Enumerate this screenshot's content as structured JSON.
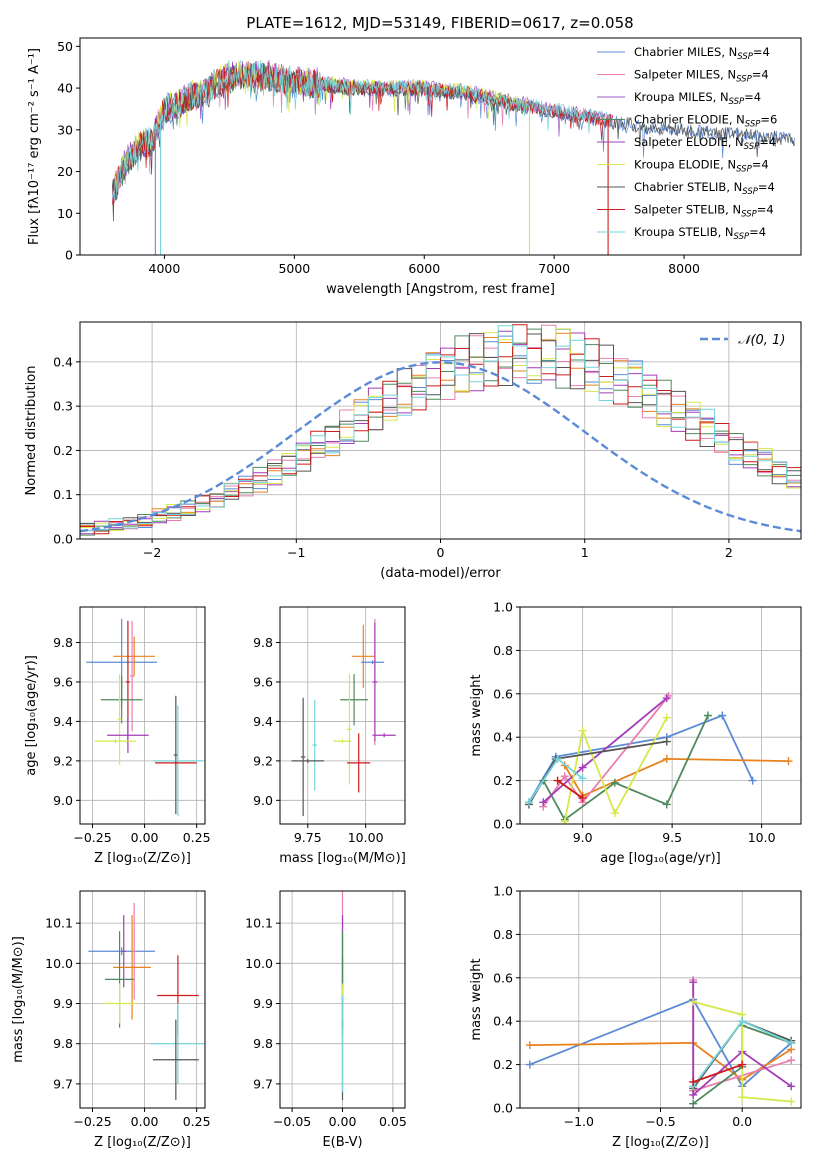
{
  "title": "PLATE=1612, MJD=53149, FIBERID=0617, z=0.058",
  "colors": {
    "chabrier_miles": "#5b8bd6",
    "salpeter_miles": "#e87fb0",
    "kroupa_miles": "#a05ac8",
    "chabrier_elodie": "#4f8a5e",
    "salpeter_elodie": "#a33cb8",
    "kroupa_elodie": "#d6e84e",
    "chabrier_stelib": "#555555",
    "salpeter_stelib": "#cc1c1c",
    "kroupa_stelib": "#74d4d8",
    "orange": "#e8821e",
    "gauss": "#5b8bd6",
    "grid": "#b0b0b0"
  },
  "chart_data": [
    {
      "id": "spectrum",
      "type": "line",
      "title": "PLATE=1612, MJD=53149, FIBERID=0617, z=0.058",
      "xlabel": "wavelength [Angstrom, rest frame]",
      "ylabel": "Flux [fλ10⁻¹⁷ erg cm⁻² s⁻¹ A⁻¹]",
      "xlim": [
        3350,
        8900
      ],
      "ylim": [
        0,
        52
      ],
      "xticks": [
        "4000",
        "5000",
        "6000",
        "7000",
        "8000"
      ],
      "yticks": [
        "0",
        "10",
        "20",
        "30",
        "40",
        "50"
      ],
      "grid": false,
      "legend_position": "top-right",
      "series_names": [
        "Chabrier MILES, N_SSP=4",
        "Salpeter MILES, N_SSP=4",
        "Kroupa MILES, N_SSP=4",
        "Chabrier ELODIE, N_SSP=6",
        "Salpeter ELODIE, N_SSP=4",
        "Kroupa ELODIE, N_SSP=4",
        "Chabrier STELIB, N_SSP=4",
        "Salpeter STELIB, N_SSP=4",
        "Kroupa STELIB, N_SSP=4"
      ],
      "legend": [
        {
          "name": "Chabrier MILES, N",
          "sub": "SSP",
          "tail": "=4"
        },
        {
          "name": "Salpeter MILES, N",
          "sub": "SSP",
          "tail": "=4"
        },
        {
          "name": "Kroupa MILES, N",
          "sub": "SSP",
          "tail": "=4"
        },
        {
          "name": "Chabrier ELODIE, N",
          "sub": "SSP",
          "tail": "=6"
        },
        {
          "name": "Salpeter ELODIE, N",
          "sub": "SSP",
          "tail": "=4"
        },
        {
          "name": "Kroupa ELODIE, N",
          "sub": "SSP",
          "tail": "=4"
        },
        {
          "name": "Chabrier STELIB, N",
          "sub": "SSP",
          "tail": "=4"
        },
        {
          "name": "Salpeter STELIB, N",
          "sub": "SSP",
          "tail": "=4"
        },
        {
          "name": "Kroupa STELIB, N",
          "sub": "SSP",
          "tail": "=4"
        }
      ],
      "continuum": {
        "x": [
          3600,
          3700,
          3800,
          3900,
          4000,
          4100,
          4200,
          4300,
          4400,
          4500,
          4600,
          4800,
          5000,
          5200,
          5500,
          5800,
          6000,
          6300,
          6600,
          6900,
          7100,
          7300,
          7500,
          7700,
          7900,
          8100,
          8300,
          8500,
          8700,
          8850
        ],
        "y": [
          15,
          22,
          26,
          27,
          35,
          36,
          38,
          39,
          41,
          43,
          43,
          43,
          41.5,
          41,
          40,
          40,
          40,
          39,
          37,
          35,
          34,
          33,
          32,
          31,
          30.5,
          30,
          29.5,
          29,
          28.5,
          28
        ]
      },
      "drops": [
        {
          "x": 3930,
          "to": 0,
          "series": "chabrier_miles"
        },
        {
          "x": 3970,
          "to": 0,
          "series": "kroupa_stelib"
        },
        {
          "x": 6810,
          "to": 0,
          "series": "kroupa_elodie"
        },
        {
          "x": 7415,
          "to": 0,
          "series": "salpeter_stelib"
        }
      ]
    },
    {
      "id": "residuals",
      "type": "histogram",
      "xlabel": "(data-model)/error",
      "ylabel": "Normed distribution",
      "xlim": [
        -2.5,
        2.5
      ],
      "ylim": [
        0,
        0.49
      ],
      "xticks": [
        "−2",
        "−1",
        "0",
        "1",
        "2"
      ],
      "yticks": [
        "0.0",
        "0.1",
        "0.2",
        "0.3",
        "0.4"
      ],
      "grid": true,
      "legend": [
        {
          "name": "𝒩(0, 1)"
        }
      ],
      "legend_position": "top-right",
      "bin_edges_start": -2.5,
      "bin_width": 0.1,
      "base_bins": [
        0.022,
        0.026,
        0.03,
        0.035,
        0.042,
        0.05,
        0.059,
        0.069,
        0.08,
        0.092,
        0.106,
        0.12,
        0.136,
        0.152,
        0.17,
        0.188,
        0.207,
        0.227,
        0.247,
        0.268,
        0.289,
        0.309,
        0.329,
        0.348,
        0.365,
        0.38,
        0.392,
        0.403,
        0.41,
        0.415,
        0.417,
        0.417,
        0.414,
        0.409,
        0.4,
        0.39,
        0.377,
        0.362,
        0.345,
        0.327,
        0.308,
        0.288,
        0.268,
        0.247,
        0.227,
        0.207,
        0.188,
        0.169,
        0.152,
        0.135,
        0.119,
        0.105,
        0.091,
        0.079,
        0.068,
        0.058,
        0.049,
        0.042,
        0.035,
        0.029
      ],
      "gaussian": {
        "mean": 0,
        "sigma": 1
      }
    },
    {
      "id": "age_vs_z",
      "type": "errorbar",
      "xlabel": "Z [log₁₀(Z/Z⊙)]",
      "ylabel": "age  [log₁₀(age/yr)]",
      "xlim": [
        -0.31,
        0.29
      ],
      "ylim": [
        8.88,
        9.98
      ],
      "xticks": [
        "−0.25",
        "0.00",
        "0.25"
      ],
      "yticks": [
        "9.0",
        "9.2",
        "9.4",
        "9.6",
        "9.8"
      ],
      "grid": true,
      "points": [
        {
          "series": "chabrier_miles",
          "x": -0.11,
          "y": 9.7,
          "xerr": 0.17,
          "yerr": 0.22
        },
        {
          "series": "orange",
          "x": -0.05,
          "y": 9.73,
          "xerr": 0.1,
          "yerr": 0.1
        },
        {
          "series": "salpeter_miles",
          "x": -0.06,
          "y": 9.63,
          "xerr": 0.01,
          "yerr": 0.28
        },
        {
          "series": "salpeter_stelib",
          "x": -0.08,
          "y": 9.6,
          "xerr": 0.01,
          "yerr": 0.31
        },
        {
          "series": "chabrier_elodie",
          "x": -0.11,
          "y": 9.51,
          "xerr": 0.1,
          "yerr": 0.12
        },
        {
          "series": "kroupa_elodie",
          "x": -0.12,
          "y": 9.41,
          "xerr": 0.01,
          "yerr": 0.23
        },
        {
          "series": "salpeter_elodie",
          "x": -0.08,
          "y": 9.33,
          "xerr": 0.1,
          "yerr": 0.09
        },
        {
          "series": "kroupa_elodie",
          "x": -0.14,
          "y": 9.3,
          "xerr": 0.1,
          "yerr": 0.01
        },
        {
          "series": "chabrier_stelib",
          "x": 0.15,
          "y": 9.23,
          "xerr": 0.01,
          "yerr": 0.3
        },
        {
          "series": "kroupa_stelib",
          "x": 0.16,
          "y": 9.2,
          "xerr": 0.12,
          "yerr": 0.28
        },
        {
          "series": "salpeter_stelib",
          "x": 0.15,
          "y": 9.19,
          "xerr": 0.1,
          "yerr": 0.01
        }
      ]
    },
    {
      "id": "age_vs_mass",
      "type": "errorbar",
      "xlabel": "mass [log₁₀(M/M⊙)]",
      "ylabel": "",
      "xlim": [
        9.63,
        10.17
      ],
      "ylim": [
        8.88,
        9.98
      ],
      "xticks": [
        "9.75",
        "10.00"
      ],
      "yticks": [
        "9.0",
        "9.2",
        "9.4",
        "9.6",
        "9.8"
      ],
      "grid": true,
      "points": [
        {
          "series": "orange",
          "x": 9.99,
          "y": 9.73,
          "xerr": 0.05,
          "yerr": 0.16
        },
        {
          "series": "chabrier_miles",
          "x": 10.03,
          "y": 9.7,
          "xerr": 0.05,
          "yerr": 0.01
        },
        {
          "series": "salpeter_miles",
          "x": 10.04,
          "y": 9.6,
          "xerr": 0.01,
          "yerr": 0.32
        },
        {
          "series": "salpeter_elodie",
          "x": 10.04,
          "y": 9.6,
          "xerr": 0.01,
          "yerr": 0.3
        },
        {
          "series": "chabrier_elodie",
          "x": 9.95,
          "y": 9.51,
          "xerr": 0.06,
          "yerr": 0.13
        },
        {
          "series": "chabrier_stelib",
          "x": 9.73,
          "y": 9.22,
          "xerr": 0.01,
          "yerr": 0.3
        },
        {
          "series": "kroupa_stelib",
          "x": 9.78,
          "y": 9.28,
          "xerr": 0.01,
          "yerr": 0.23
        },
        {
          "series": "kroupa_elodie",
          "x": 9.93,
          "y": 9.36,
          "xerr": 0.01,
          "yerr": 0.28
        },
        {
          "series": "kroupa_elodie",
          "x": 9.9,
          "y": 9.3,
          "xerr": 0.04,
          "yerr": 0.01
        },
        {
          "series": "salpeter_elodie",
          "x": 10.08,
          "y": 9.33,
          "xerr": 0.05,
          "yerr": 0.01
        },
        {
          "series": "chabrier_stelib",
          "x": 9.75,
          "y": 9.2,
          "xerr": 0.07,
          "yerr": 0.01
        },
        {
          "series": "salpeter_stelib",
          "x": 9.97,
          "y": 9.19,
          "xerr": 0.05,
          "yerr": 0.15
        }
      ]
    },
    {
      "id": "weight_vs_age",
      "type": "line",
      "xlabel": "age  [log₁₀(age/yr)]",
      "ylabel": "mass weight",
      "xlim": [
        8.65,
        10.22
      ],
      "ylim": [
        0,
        1.0
      ],
      "xticks": [
        "9.0",
        "9.5",
        "10.0"
      ],
      "yticks": [
        "0.0",
        "0.2",
        "0.4",
        "0.6",
        "0.8",
        "1.0"
      ],
      "grid": true,
      "series": [
        {
          "key": "chabrier_miles",
          "x": [
            8.7,
            8.85,
            9.47,
            9.78,
            9.95
          ],
          "y": [
            0.1,
            0.31,
            0.4,
            0.5,
            0.2
          ]
        },
        {
          "key": "orange",
          "x": [
            8.9,
            9.0,
            9.47,
            10.15
          ],
          "y": [
            0.27,
            0.13,
            0.3,
            0.29
          ]
        },
        {
          "key": "salpeter_miles",
          "x": [
            8.78,
            8.9,
            9.0,
            9.48
          ],
          "y": [
            0.08,
            0.22,
            0.1,
            0.59
          ]
        },
        {
          "key": "chabrier_elodie",
          "x": [
            8.78,
            8.9,
            9.18,
            9.47,
            9.7
          ],
          "y": [
            0.2,
            0.02,
            0.19,
            0.09,
            0.5
          ]
        },
        {
          "key": "salpeter_elodie",
          "x": [
            8.78,
            9.0,
            9.47
          ],
          "y": [
            0.1,
            0.26,
            0.58
          ]
        },
        {
          "key": "kroupa_elodie",
          "x": [
            8.9,
            9.0,
            9.18,
            9.47
          ],
          "y": [
            0.01,
            0.43,
            0.05,
            0.49
          ]
        },
        {
          "key": "chabrier_stelib",
          "x": [
            8.7,
            8.85,
            9.47
          ],
          "y": [
            0.09,
            0.3,
            0.38
          ]
        },
        {
          "key": "kroupa_stelib",
          "x": [
            8.7,
            8.86,
            9.0
          ],
          "y": [
            0.1,
            0.3,
            0.21
          ]
        },
        {
          "key": "salpeter_stelib",
          "x": [
            8.86,
            9.0
          ],
          "y": [
            0.2,
            0.12
          ]
        }
      ]
    },
    {
      "id": "mass_vs_z",
      "type": "errorbar",
      "xlabel": "Z [log₁₀(Z/Z⊙)]",
      "ylabel": "mass [log₁₀(M/M⊙)]",
      "xlim": [
        -0.31,
        0.29
      ],
      "ylim": [
        9.64,
        10.18
      ],
      "xticks": [
        "−0.25",
        "0.00",
        "0.25"
      ],
      "yticks": [
        "9.7",
        "9.8",
        "9.9",
        "10.0",
        "10.1"
      ],
      "grid": true,
      "points": [
        {
          "series": "chabrier_miles",
          "x": -0.11,
          "y": 10.03,
          "xerr": 0.16,
          "yerr": 0.01
        },
        {
          "series": "salpeter_elodie",
          "x": -0.1,
          "y": 10.03,
          "xerr": 0.01,
          "yerr": 0.09
        },
        {
          "series": "salpeter_miles",
          "x": -0.05,
          "y": 10.03,
          "xerr": 0.01,
          "yerr": 0.12
        },
        {
          "series": "orange",
          "x": -0.06,
          "y": 9.99,
          "xerr": 0.09,
          "yerr": 0.13
        },
        {
          "series": "chabrier_elodie",
          "x": -0.12,
          "y": 9.96,
          "xerr": 0.07,
          "yerr": 0.12
        },
        {
          "series": "kroupa_elodie",
          "x": -0.12,
          "y": 9.9,
          "xerr": 0.08,
          "yerr": 0.05
        },
        {
          "series": "salpeter_stelib",
          "x": 0.16,
          "y": 9.92,
          "xerr": 0.1,
          "yerr": 0.1
        },
        {
          "series": "kroupa_stelib",
          "x": 0.16,
          "y": 9.8,
          "xerr": 0.13,
          "yerr": 0.1
        },
        {
          "series": "chabrier_stelib",
          "x": 0.15,
          "y": 9.76,
          "xerr": 0.11,
          "yerr": 0.1
        }
      ]
    },
    {
      "id": "mass_vs_ebv",
      "type": "errorbar",
      "xlabel": "E(B-V)",
      "ylabel": "",
      "xlim": [
        -0.062,
        0.062
      ],
      "ylim": [
        9.64,
        10.18
      ],
      "xticks": [
        "−0.05",
        "0.00",
        "0.05"
      ],
      "yticks": [
        "9.7",
        "9.8",
        "9.9",
        "10.0",
        "10.1"
      ],
      "grid": true,
      "points": [
        {
          "series": "salpeter_miles",
          "x": 0,
          "y": 10.03,
          "xerr": 0,
          "yerr": 0.15
        },
        {
          "series": "salpeter_elodie",
          "x": 0,
          "y": 10.03,
          "xerr": 0,
          "yerr": 0.09
        },
        {
          "series": "salpeter_stelib",
          "x": 0,
          "y": 9.92,
          "xerr": 0,
          "yerr": 0.1
        },
        {
          "series": "chabrier_elodie",
          "x": 0,
          "y": 9.96,
          "xerr": 0,
          "yerr": 0.12
        },
        {
          "series": "kroupa_elodie",
          "x": 0,
          "y": 9.9,
          "xerr": 0,
          "yerr": 0.05
        },
        {
          "series": "chabrier_stelib",
          "x": 0,
          "y": 9.76,
          "xerr": 0,
          "yerr": 0.1
        },
        {
          "series": "kroupa_stelib",
          "x": 0,
          "y": 9.8,
          "xerr": 0,
          "yerr": 0.12
        }
      ]
    },
    {
      "id": "weight_vs_z",
      "type": "line",
      "xlabel": "Z [log₁₀(Z/Z⊙)]",
      "ylabel": "mass weight",
      "xlim": [
        -1.36,
        0.36
      ],
      "ylim": [
        0,
        1.0
      ],
      "xticks": [
        "−1.0",
        "−0.5",
        "0.0"
      ],
      "yticks": [
        "0.0",
        "0.2",
        "0.4",
        "0.6",
        "0.8",
        "1.0"
      ],
      "grid": true,
      "series": [
        {
          "key": "chabrier_miles",
          "x": [
            -1.3,
            -0.3,
            0.0,
            0.3
          ],
          "y": [
            0.2,
            0.5,
            0.1,
            0.3
          ]
        },
        {
          "key": "orange",
          "x": [
            -1.3,
            -0.3,
            0.0,
            0.3
          ],
          "y": [
            0.29,
            0.3,
            0.13,
            0.27
          ]
        },
        {
          "key": "salpeter_miles",
          "x": [
            -0.3,
            -0.3,
            0.3
          ],
          "y": [
            0.59,
            0.08,
            0.22
          ]
        },
        {
          "key": "chabrier_elodie",
          "x": [
            -0.3,
            0.0,
            0.0,
            0.3
          ],
          "y": [
            0.02,
            0.19,
            0.38,
            0.3
          ]
        },
        {
          "key": "salpeter_elodie",
          "x": [
            -0.3,
            -0.3,
            0.0,
            0.3
          ],
          "y": [
            0.58,
            0.06,
            0.26,
            0.1
          ]
        },
        {
          "key": "kroupa_elodie",
          "x": [
            -0.3,
            0.0,
            0.0,
            0.3
          ],
          "y": [
            0.49,
            0.43,
            0.05,
            0.03
          ]
        },
        {
          "key": "chabrier_stelib",
          "x": [
            -0.3,
            0.0,
            0.3
          ],
          "y": [
            0.09,
            0.4,
            0.31
          ]
        },
        {
          "key": "kroupa_stelib",
          "x": [
            -0.3,
            0.0,
            0.3
          ],
          "y": [
            0.1,
            0.4,
            0.3
          ]
        },
        {
          "key": "salpeter_stelib",
          "x": [
            -0.3,
            0.0
          ],
          "y": [
            0.12,
            0.2
          ]
        }
      ]
    }
  ]
}
